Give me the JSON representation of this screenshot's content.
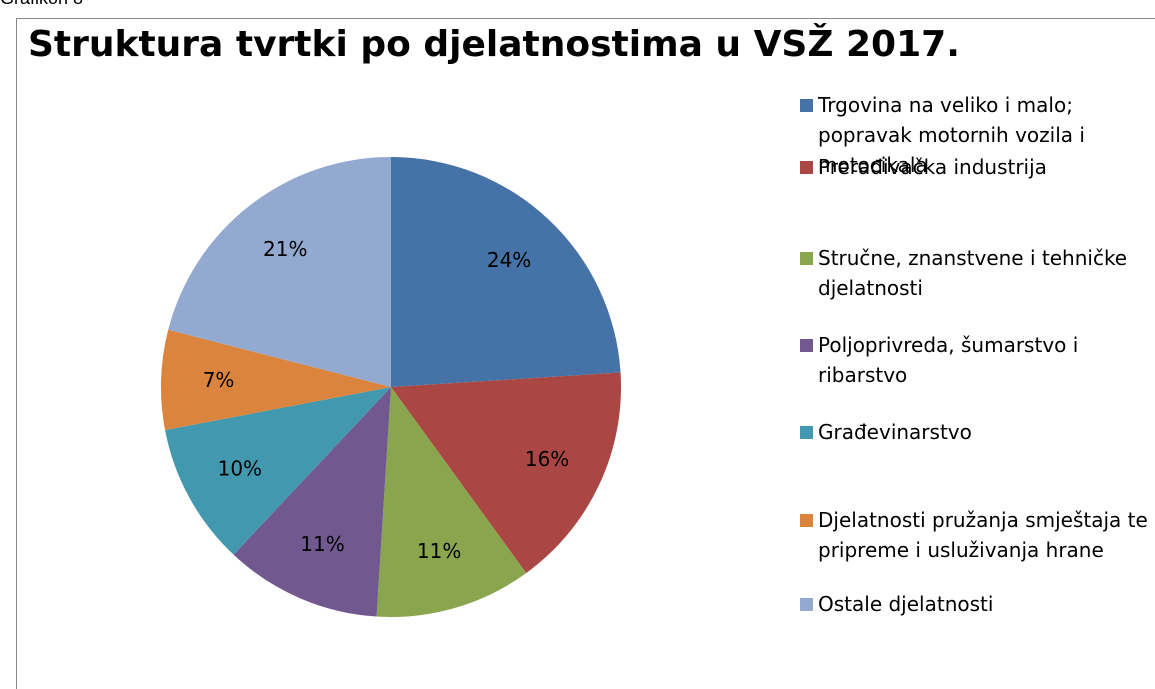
{
  "caption": "Grafikon 8",
  "chart_data": {
    "type": "pie",
    "title": "Struktura tvrtki po djelatnostima u VSŽ 2017.",
    "categories": [
      "Trgovina na veliko i malo; popravak motornih vozila i motocikala",
      "Prerađivačka industrija",
      "Stručne, znanstvene i tehničke djelatnosti",
      "Poljoprivreda, šumarstvo i ribarstvo",
      "Građevinarstvo",
      "Djelatnosti pružanja smještaja te pripreme i usluživanja hrane",
      "Ostale djelatnosti"
    ],
    "values": [
      24,
      16,
      11,
      11,
      10,
      7,
      21
    ],
    "value_labels": [
      "24%",
      "16%",
      "11%",
      "11%",
      "10%",
      "7%",
      "21%"
    ],
    "colors": [
      "#4572a7",
      "#aa4643",
      "#89a54e",
      "#71588f",
      "#4198af",
      "#db843d",
      "#93a9cf"
    ],
    "legend": "right"
  }
}
